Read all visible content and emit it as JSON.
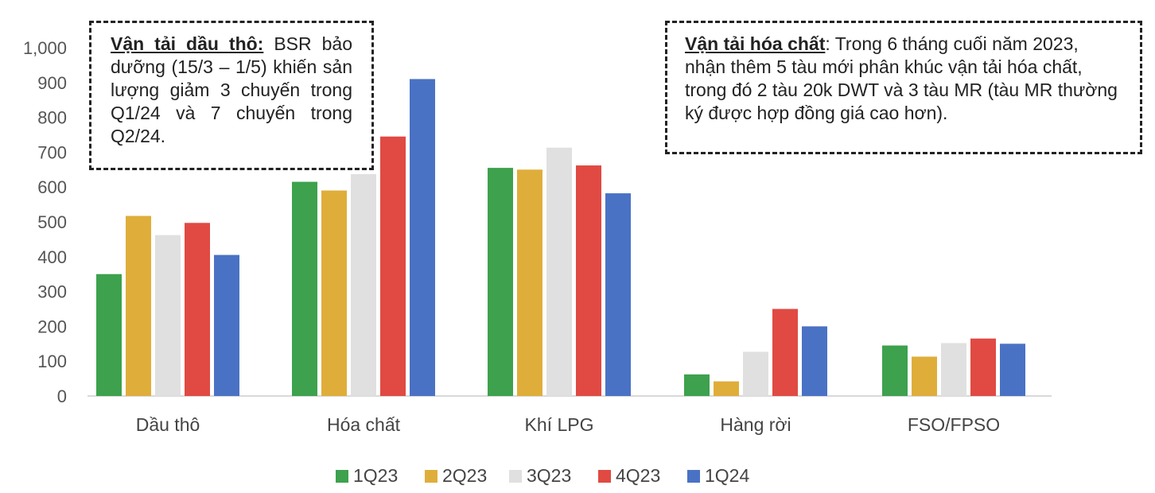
{
  "chart_data": {
    "type": "bar",
    "categories": [
      "Dầu thô",
      "Hóa chất",
      "Khí LPG",
      "Hàng rời",
      "FSO/FPSO"
    ],
    "series": [
      {
        "name": "1Q23",
        "color": "#3da14d",
        "values": [
          350,
          615,
          655,
          62,
          145
        ]
      },
      {
        "name": "2Q23",
        "color": "#dfae3a",
        "values": [
          517,
          590,
          650,
          42,
          113
        ]
      },
      {
        "name": "3Q23",
        "color": "#e0e0e0",
        "values": [
          462,
          637,
          713,
          127,
          152
        ]
      },
      {
        "name": "4Q23",
        "color": "#e04a43",
        "values": [
          497,
          745,
          662,
          250,
          165
        ]
      },
      {
        "name": "1Q24",
        "color": "#4a72c4",
        "values": [
          405,
          910,
          582,
          200,
          150
        ]
      }
    ],
    "ylim": [
      0,
      1000
    ],
    "yticks": [
      "0",
      "100",
      "200",
      "300",
      "400",
      "500",
      "600",
      "700",
      "800",
      "900",
      "1,000"
    ],
    "grid": false,
    "legend_position": "bottom"
  },
  "annotations": {
    "crude": {
      "heading": "Vận tải dầu thô:",
      "text": " BSR bảo dưỡng (15/3 – 1/5) khiến sản lượng giảm 3 chuyến trong Q1/24 và 7 chuyến trong Q2/24."
    },
    "chemical": {
      "heading": "Vận tải hóa chất",
      "text": ": Trong 6 tháng cuối năm 2023, nhận thêm 5 tàu mới phân khúc vận tải hóa chất, trong đó 2 tàu 20k DWT và 3 tàu MR (tàu MR thường ký được hợp đồng giá cao hơn)."
    }
  }
}
